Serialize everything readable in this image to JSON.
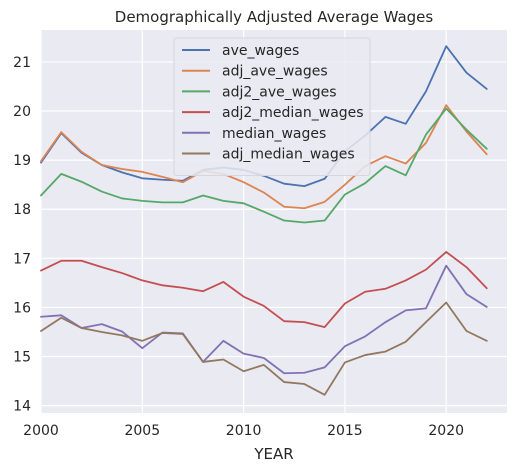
{
  "chart_data": {
    "type": "line",
    "title": "Demographically Adjusted Average Wages",
    "xlabel": "YEAR",
    "ylabel": "",
    "xlim": [
      2000,
      2023
    ],
    "ylim": [
      13.85,
      21.65
    ],
    "xticks": [
      2000,
      2005,
      2010,
      2015,
      2020
    ],
    "yticks": [
      14,
      15,
      16,
      17,
      18,
      19,
      20,
      21
    ],
    "grid": true,
    "legend_position": "upper-center",
    "x": [
      2000,
      2001,
      2002,
      2003,
      2004,
      2005,
      2006,
      2007,
      2008,
      2009,
      2010,
      2011,
      2012,
      2013,
      2014,
      2015,
      2016,
      2017,
      2018,
      2019,
      2020,
      2021,
      2022
    ],
    "series": [
      {
        "name": "ave_wages",
        "color": "#4c72b0",
        "values": [
          18.95,
          19.55,
          19.15,
          18.9,
          18.75,
          18.63,
          18.6,
          18.58,
          18.8,
          18.85,
          18.8,
          18.68,
          18.52,
          18.47,
          18.62,
          19.18,
          19.5,
          19.88,
          19.74,
          20.4,
          21.32,
          20.78,
          20.45
        ]
      },
      {
        "name": "adj_ave_wages",
        "color": "#dd8452",
        "values": [
          18.98,
          19.57,
          19.17,
          18.9,
          18.82,
          18.76,
          18.66,
          18.55,
          18.78,
          18.72,
          18.55,
          18.34,
          18.05,
          18.02,
          18.15,
          18.5,
          18.88,
          19.08,
          18.93,
          19.35,
          20.12,
          19.58,
          19.12
        ]
      },
      {
        "name": "adj2_ave_wages",
        "color": "#55a868",
        "values": [
          18.28,
          18.72,
          18.56,
          18.36,
          18.22,
          18.17,
          18.14,
          18.14,
          18.28,
          18.17,
          18.12,
          17.95,
          17.77,
          17.73,
          17.77,
          18.3,
          18.53,
          18.88,
          18.69,
          19.52,
          20.05,
          19.62,
          19.23
        ]
      },
      {
        "name": "adj2_median_wages",
        "color": "#c44e52",
        "values": [
          16.75,
          16.95,
          16.95,
          16.82,
          16.7,
          16.55,
          16.45,
          16.4,
          16.33,
          16.52,
          16.22,
          16.03,
          15.72,
          15.7,
          15.6,
          16.08,
          16.32,
          16.38,
          16.55,
          16.77,
          17.13,
          16.82,
          16.39
        ]
      },
      {
        "name": "median_wages",
        "color": "#8172b3",
        "values": [
          15.81,
          15.84,
          15.58,
          15.66,
          15.51,
          15.17,
          15.49,
          15.47,
          14.89,
          15.32,
          15.06,
          14.97,
          14.66,
          14.67,
          14.78,
          15.21,
          15.41,
          15.7,
          15.94,
          15.98,
          16.85,
          16.27,
          16.01
        ]
      },
      {
        "name": "adj_median_wages",
        "color": "#937860",
        "values": [
          15.52,
          15.79,
          15.58,
          15.5,
          15.43,
          15.32,
          15.48,
          15.46,
          14.89,
          14.94,
          14.7,
          14.83,
          14.48,
          14.44,
          14.22,
          14.88,
          15.03,
          15.1,
          15.3,
          15.7,
          16.1,
          15.52,
          15.32
        ]
      }
    ]
  }
}
